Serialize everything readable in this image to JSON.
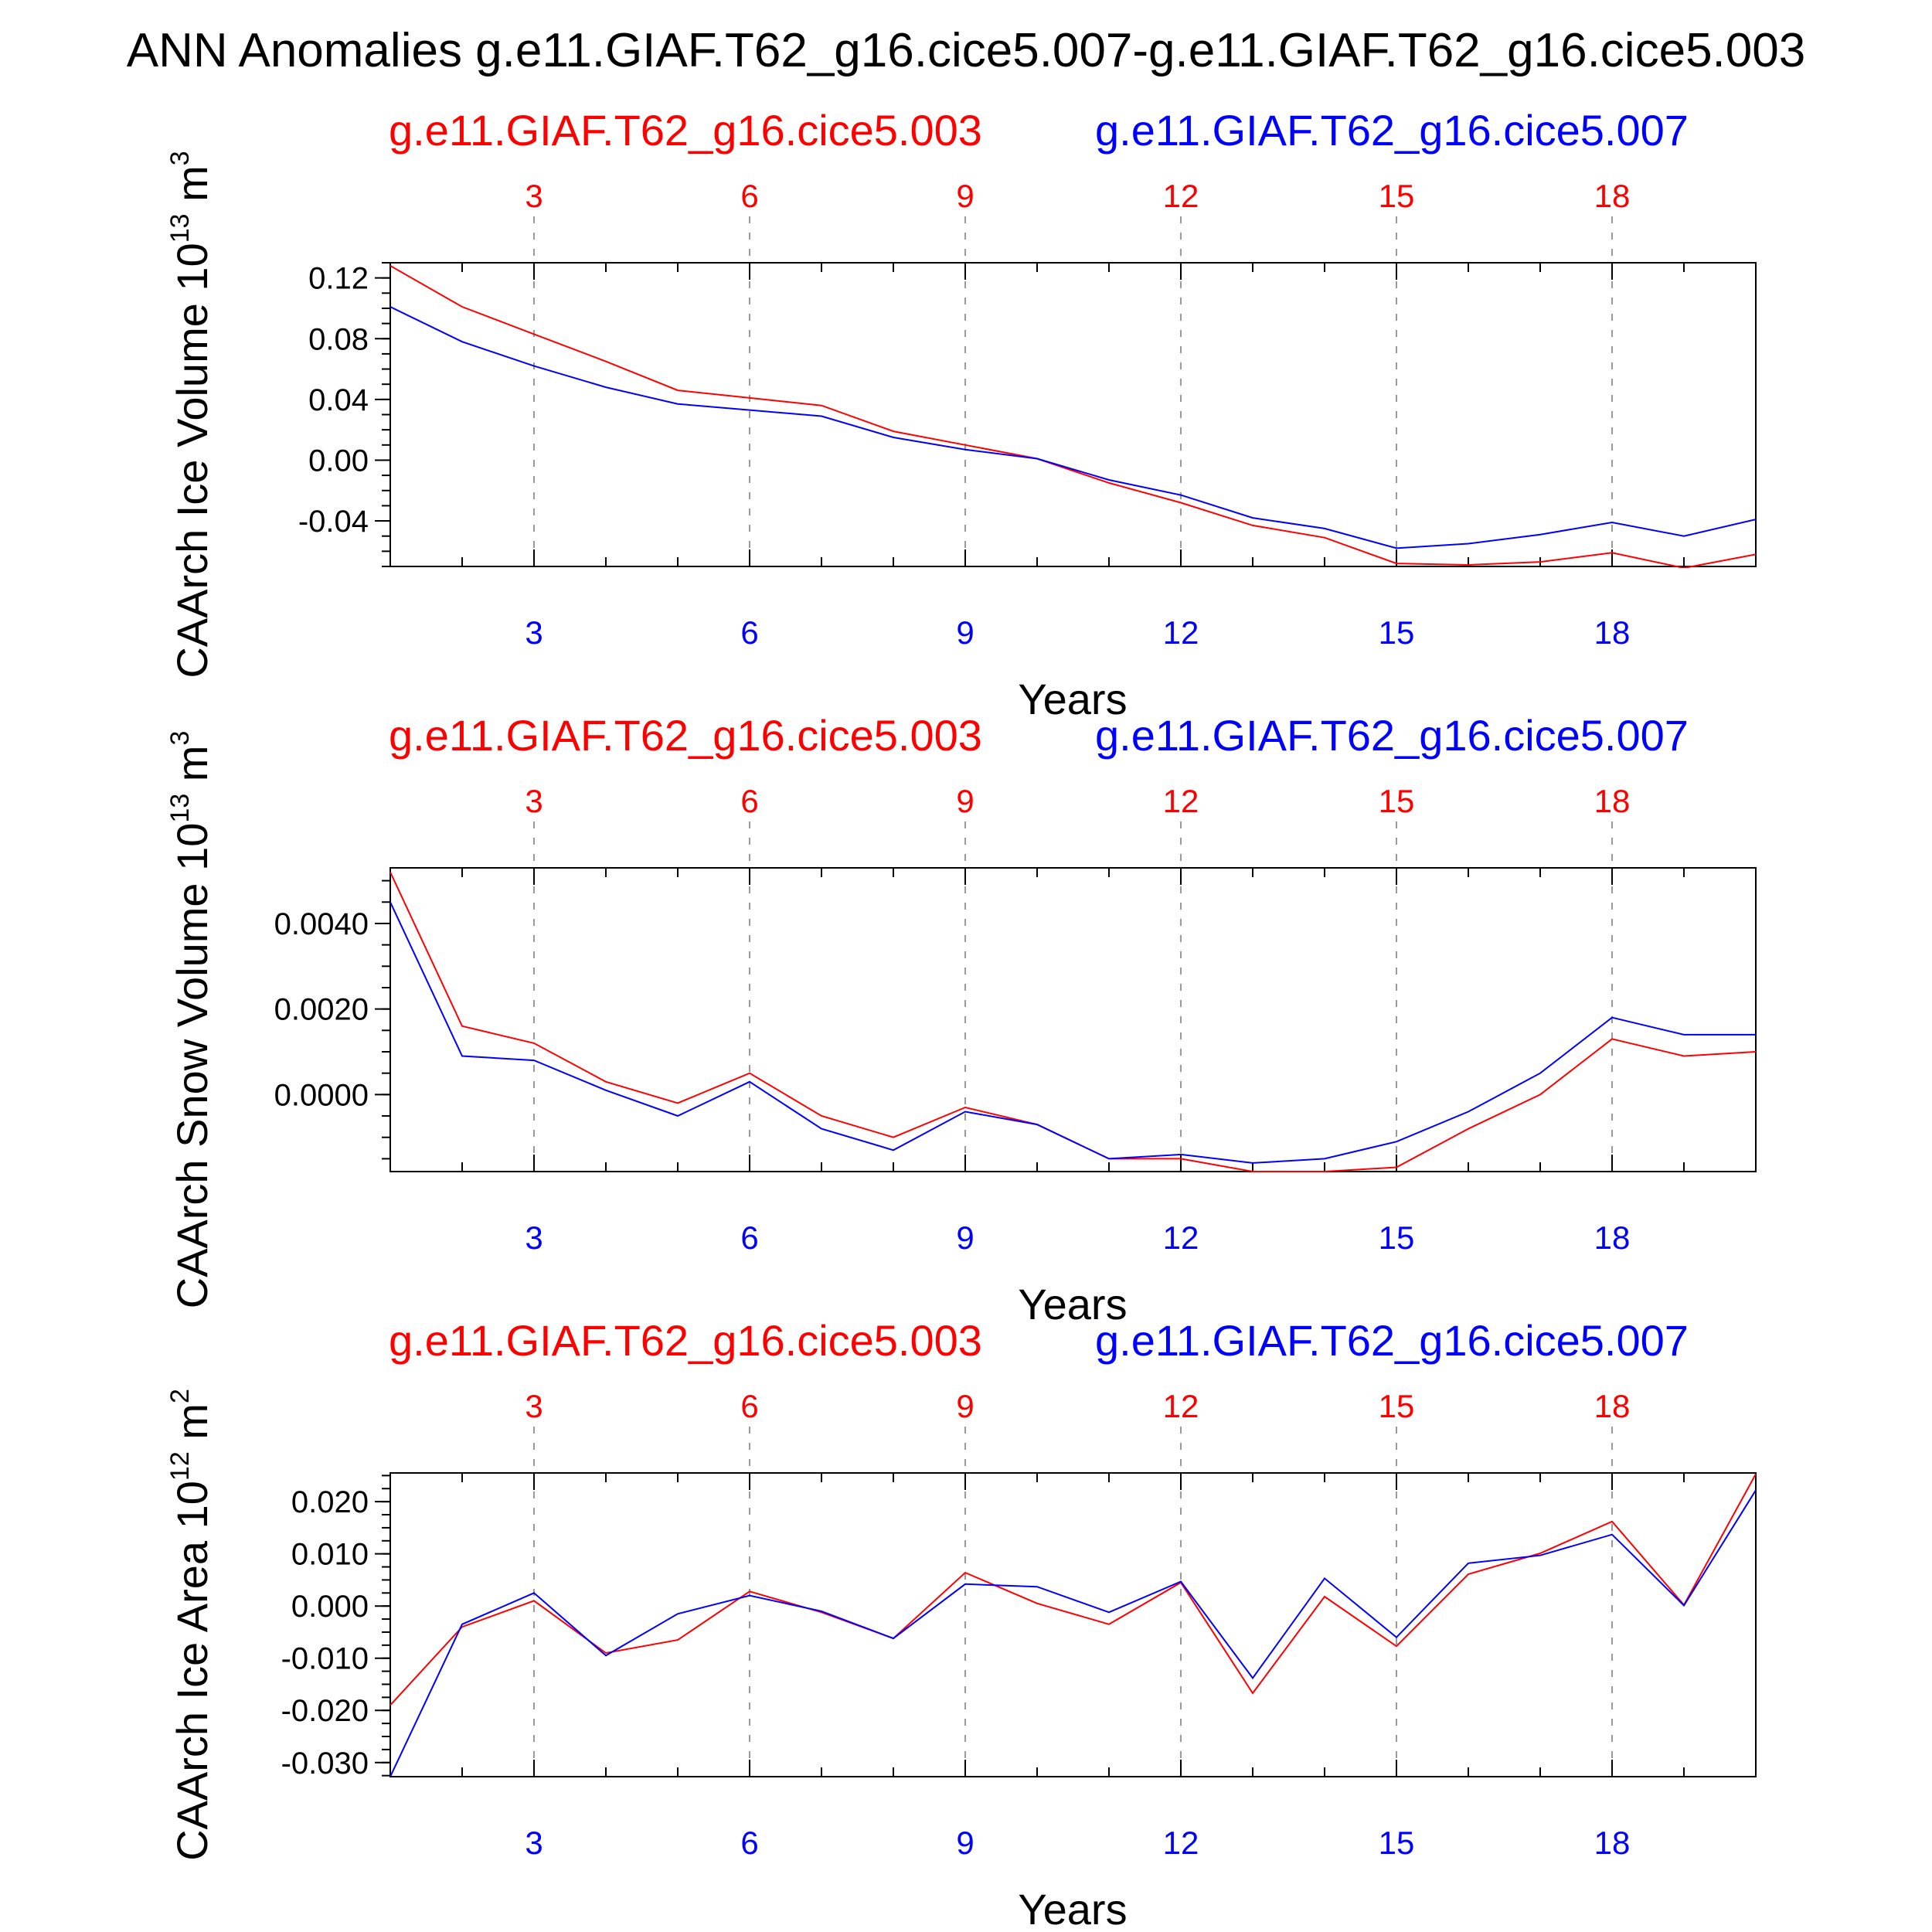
{
  "page_title": "ANN Anomalies g.e11.GIAF.T62_g16.cice5.007-g.e11.GIAF.T62_g16.cice5.003",
  "legend_labels": {
    "case1": "g.e11.GIAF.T62_g16.cice5.003",
    "case2": "g.e11.GIAF.T62_g16.cice5.007"
  },
  "colors": {
    "case1": "#ff0000",
    "case2": "#0000ff",
    "axis": "#000000",
    "grid": "#999999"
  },
  "chart_data": [
    {
      "type": "line",
      "title": "",
      "ylabel": "CAArch Ice Volume 10",
      "ylabel_exponent": "13",
      "ylabel_unit": " m",
      "ylabel_unit_exponent": "3",
      "xlabel": "Years",
      "xlim": [
        1,
        20
      ],
      "xticks": [
        3,
        6,
        9,
        12,
        15,
        18
      ],
      "ylim": [
        -0.07,
        0.13
      ],
      "yticks": [
        -0.04,
        0.0,
        0.04,
        0.08,
        0.12
      ],
      "ytick_labels": [
        "-0.04",
        "0.00",
        "0.04",
        "0.08",
        "0.12"
      ],
      "yminor_step": 0.01,
      "x": [
        1,
        2,
        3,
        4,
        5,
        6,
        7,
        8,
        9,
        10,
        11,
        12,
        13,
        14,
        15,
        16,
        17,
        18,
        19,
        20
      ],
      "series": [
        {
          "name": "g.e11.GIAF.T62_g16.cice5.003",
          "color": "#ff0000",
          "values": [
            0.128,
            0.101,
            0.083,
            0.065,
            0.046,
            0.041,
            0.036,
            0.019,
            0.01,
            0.001,
            -0.015,
            -0.028,
            -0.043,
            -0.051,
            -0.068,
            -0.069,
            -0.067,
            -0.061,
            -0.071,
            -0.062
          ]
        },
        {
          "name": "g.e11.GIAF.T62_g16.cice5.007",
          "color": "#0000ff",
          "values": [
            0.101,
            0.078,
            0.062,
            0.048,
            0.037,
            0.033,
            0.029,
            0.015,
            0.007,
            0.001,
            -0.013,
            -0.023,
            -0.038,
            -0.045,
            -0.058,
            -0.055,
            -0.049,
            -0.041,
            -0.05,
            -0.039
          ]
        }
      ]
    },
    {
      "type": "line",
      "title": "",
      "ylabel": "CAArch Snow Volume 10",
      "ylabel_exponent": "13",
      "ylabel_unit": " m",
      "ylabel_unit_exponent": "3",
      "xlabel": "Years",
      "xlim": [
        1,
        20
      ],
      "xticks": [
        3,
        6,
        9,
        12,
        15,
        18
      ],
      "ylim": [
        -0.0018,
        0.0053
      ],
      "yticks": [
        0.0,
        0.002,
        0.004
      ],
      "ytick_labels": [
        "0.0000",
        "0.0020",
        "0.0040"
      ],
      "yminor_step": 0.0005,
      "x": [
        1,
        2,
        3,
        4,
        5,
        6,
        7,
        8,
        9,
        10,
        11,
        12,
        13,
        14,
        15,
        16,
        17,
        18,
        19,
        20
      ],
      "series": [
        {
          "name": "g.e11.GIAF.T62_g16.cice5.003",
          "color": "#ff0000",
          "values": [
            0.0052,
            0.0016,
            0.0012,
            0.0003,
            -0.0002,
            0.0005,
            -0.0005,
            -0.001,
            -0.0003,
            -0.0007,
            -0.0015,
            -0.0015,
            -0.0018,
            -0.0018,
            -0.0017,
            -0.0008,
            0.0,
            0.0013,
            0.0009,
            0.001
          ]
        },
        {
          "name": "g.e11.GIAF.T62_g16.cice5.007",
          "color": "#0000ff",
          "values": [
            0.0045,
            0.0009,
            0.0008,
            0.0001,
            -0.0005,
            0.0003,
            -0.0008,
            -0.0013,
            -0.0004,
            -0.0007,
            -0.0015,
            -0.0014,
            -0.0016,
            -0.0015,
            -0.0011,
            -0.0004,
            0.0005,
            0.0018,
            0.0014,
            0.0014
          ]
        }
      ]
    },
    {
      "type": "line",
      "title": "",
      "ylabel": "CAArch Ice Area 10",
      "ylabel_exponent": "12",
      "ylabel_unit": " m",
      "ylabel_unit_exponent": "2",
      "xlabel": "Years",
      "xlim": [
        1,
        20
      ],
      "xticks": [
        3,
        6,
        9,
        12,
        15,
        18
      ],
      "ylim": [
        -0.0327,
        0.0255
      ],
      "yticks": [
        -0.03,
        -0.02,
        -0.01,
        0.0,
        0.01,
        0.02
      ],
      "ytick_labels": [
        "-0.030",
        "-0.020",
        "-0.010",
        "0.000",
        "0.010",
        "0.020"
      ],
      "yminor_step": 0.0025,
      "x": [
        1,
        2,
        3,
        4,
        5,
        6,
        7,
        8,
        9,
        10,
        11,
        12,
        13,
        14,
        15,
        16,
        17,
        18,
        19,
        20
      ],
      "series": [
        {
          "name": "g.e11.GIAF.T62_g16.cice5.003",
          "color": "#ff0000",
          "values": [
            -0.019,
            -0.004,
            0.001,
            -0.009,
            -0.0065,
            0.0028,
            -0.0012,
            -0.0062,
            0.0064,
            0.0005,
            -0.0035,
            0.0045,
            -0.0167,
            0.0018,
            -0.0077,
            0.0061,
            0.0101,
            0.0162,
            0.0002,
            0.0253
          ]
        },
        {
          "name": "g.e11.GIAF.T62_g16.cice5.007",
          "color": "#0000ff",
          "values": [
            -0.0327,
            -0.0035,
            0.0025,
            -0.0095,
            -0.0015,
            0.002,
            -0.001,
            -0.0062,
            0.0042,
            0.0037,
            -0.0012,
            0.0047,
            -0.0138,
            0.0053,
            -0.006,
            0.0082,
            0.0097,
            0.0137,
            0.0001,
            0.0222
          ]
        }
      ]
    }
  ]
}
